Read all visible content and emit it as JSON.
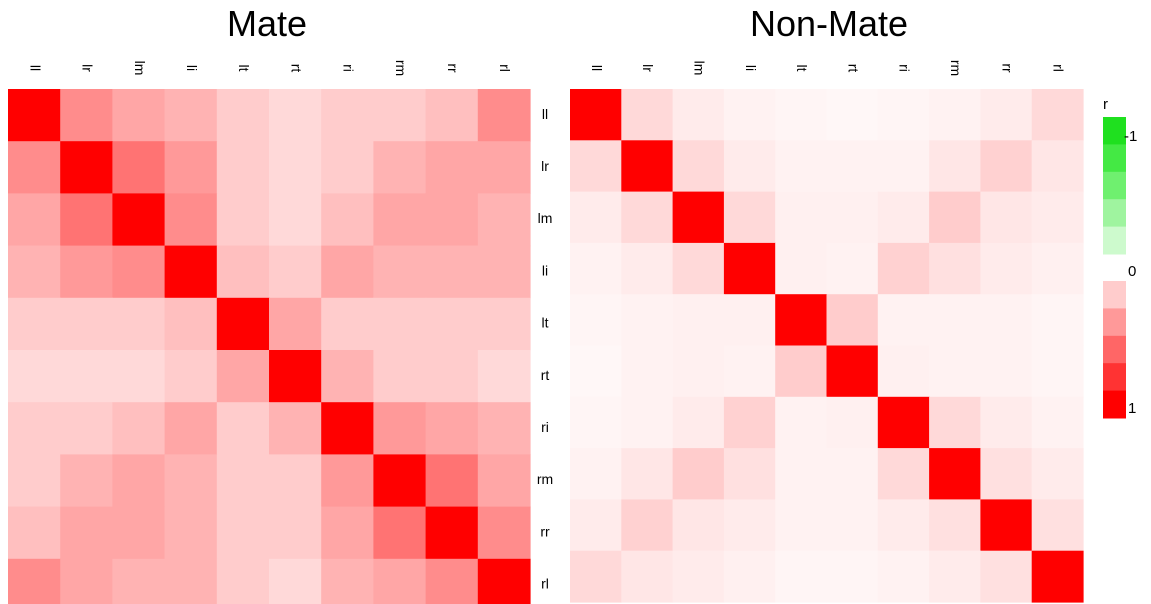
{
  "chart_data": [
    {
      "type": "heatmap",
      "title": "Mate",
      "x_labels": [
        "ll",
        "lr",
        "lm",
        "li",
        "lt",
        "rt",
        "ri",
        "rm",
        "rr",
        "rl"
      ],
      "y_labels": [
        "ll",
        "lr",
        "lm",
        "li",
        "lt",
        "rt",
        "ri",
        "rm",
        "rr",
        "rl"
      ],
      "x_label_orientation": "rotated-vertical",
      "values": [
        [
          1.0,
          0.45,
          0.35,
          0.3,
          0.2,
          0.15,
          0.2,
          0.2,
          0.25,
          0.45
        ],
        [
          0.45,
          1.0,
          0.55,
          0.4,
          0.2,
          0.15,
          0.2,
          0.3,
          0.35,
          0.35
        ],
        [
          0.35,
          0.55,
          1.0,
          0.45,
          0.2,
          0.15,
          0.25,
          0.35,
          0.35,
          0.3
        ],
        [
          0.3,
          0.4,
          0.45,
          1.0,
          0.25,
          0.2,
          0.35,
          0.3,
          0.3,
          0.3
        ],
        [
          0.2,
          0.2,
          0.2,
          0.25,
          1.0,
          0.35,
          0.2,
          0.2,
          0.2,
          0.2
        ],
        [
          0.15,
          0.15,
          0.15,
          0.2,
          0.35,
          1.0,
          0.3,
          0.2,
          0.2,
          0.15
        ],
        [
          0.2,
          0.2,
          0.25,
          0.35,
          0.2,
          0.3,
          1.0,
          0.4,
          0.35,
          0.3
        ],
        [
          0.2,
          0.3,
          0.35,
          0.3,
          0.2,
          0.2,
          0.4,
          1.0,
          0.55,
          0.35
        ],
        [
          0.25,
          0.35,
          0.35,
          0.3,
          0.2,
          0.2,
          0.35,
          0.55,
          1.0,
          0.45
        ],
        [
          0.45,
          0.35,
          0.3,
          0.3,
          0.2,
          0.15,
          0.3,
          0.35,
          0.45,
          1.0
        ]
      ]
    },
    {
      "type": "heatmap",
      "title": "Non-Mate",
      "x_labels": [
        "ll",
        "lr",
        "lm",
        "li",
        "lt",
        "rt",
        "ri",
        "rm",
        "rr",
        "rl"
      ],
      "y_labels": [
        "ll",
        "lr",
        "lm",
        "li",
        "lt",
        "rt",
        "ri",
        "rm",
        "rr",
        "rl"
      ],
      "x_label_orientation": "rotated-vertical",
      "values": [
        [
          1.0,
          0.15,
          0.08,
          0.05,
          0.04,
          0.03,
          0.04,
          0.05,
          0.08,
          0.15
        ],
        [
          0.15,
          1.0,
          0.15,
          0.08,
          0.05,
          0.05,
          0.05,
          0.1,
          0.18,
          0.1
        ],
        [
          0.08,
          0.15,
          1.0,
          0.15,
          0.06,
          0.06,
          0.08,
          0.2,
          0.1,
          0.08
        ],
        [
          0.05,
          0.08,
          0.15,
          1.0,
          0.06,
          0.05,
          0.18,
          0.12,
          0.08,
          0.06
        ],
        [
          0.04,
          0.05,
          0.06,
          0.06,
          1.0,
          0.2,
          0.05,
          0.05,
          0.05,
          0.04
        ],
        [
          0.03,
          0.05,
          0.06,
          0.05,
          0.2,
          1.0,
          0.06,
          0.05,
          0.05,
          0.04
        ],
        [
          0.04,
          0.05,
          0.08,
          0.18,
          0.05,
          0.06,
          1.0,
          0.15,
          0.08,
          0.05
        ],
        [
          0.05,
          0.1,
          0.2,
          0.12,
          0.05,
          0.05,
          0.15,
          1.0,
          0.12,
          0.08
        ],
        [
          0.08,
          0.18,
          0.1,
          0.08,
          0.05,
          0.05,
          0.08,
          0.12,
          1.0,
          0.12
        ],
        [
          0.15,
          0.1,
          0.08,
          0.06,
          0.04,
          0.04,
          0.05,
          0.08,
          0.12,
          1.0
        ]
      ]
    }
  ],
  "legend": {
    "title": "r",
    "negative_tick": "-1",
    "zero_tick": "0",
    "positive_tick": "1",
    "negative_steps": [
      {
        "value": -1.0,
        "color": "#1fe01f"
      },
      {
        "value": -0.8,
        "color": "#44e944"
      },
      {
        "value": -0.6,
        "color": "#6ff06f"
      },
      {
        "value": -0.4,
        "color": "#9ff49f"
      },
      {
        "value": -0.2,
        "color": "#cdfacd"
      }
    ],
    "positive_steps": [
      {
        "value": 0.2,
        "color": "#ffcccc"
      },
      {
        "value": 0.4,
        "color": "#ff9999"
      },
      {
        "value": 0.6,
        "color": "#ff6666"
      },
      {
        "value": 0.8,
        "color": "#ff3333"
      },
      {
        "value": 1.0,
        "color": "#ff0000"
      }
    ]
  }
}
